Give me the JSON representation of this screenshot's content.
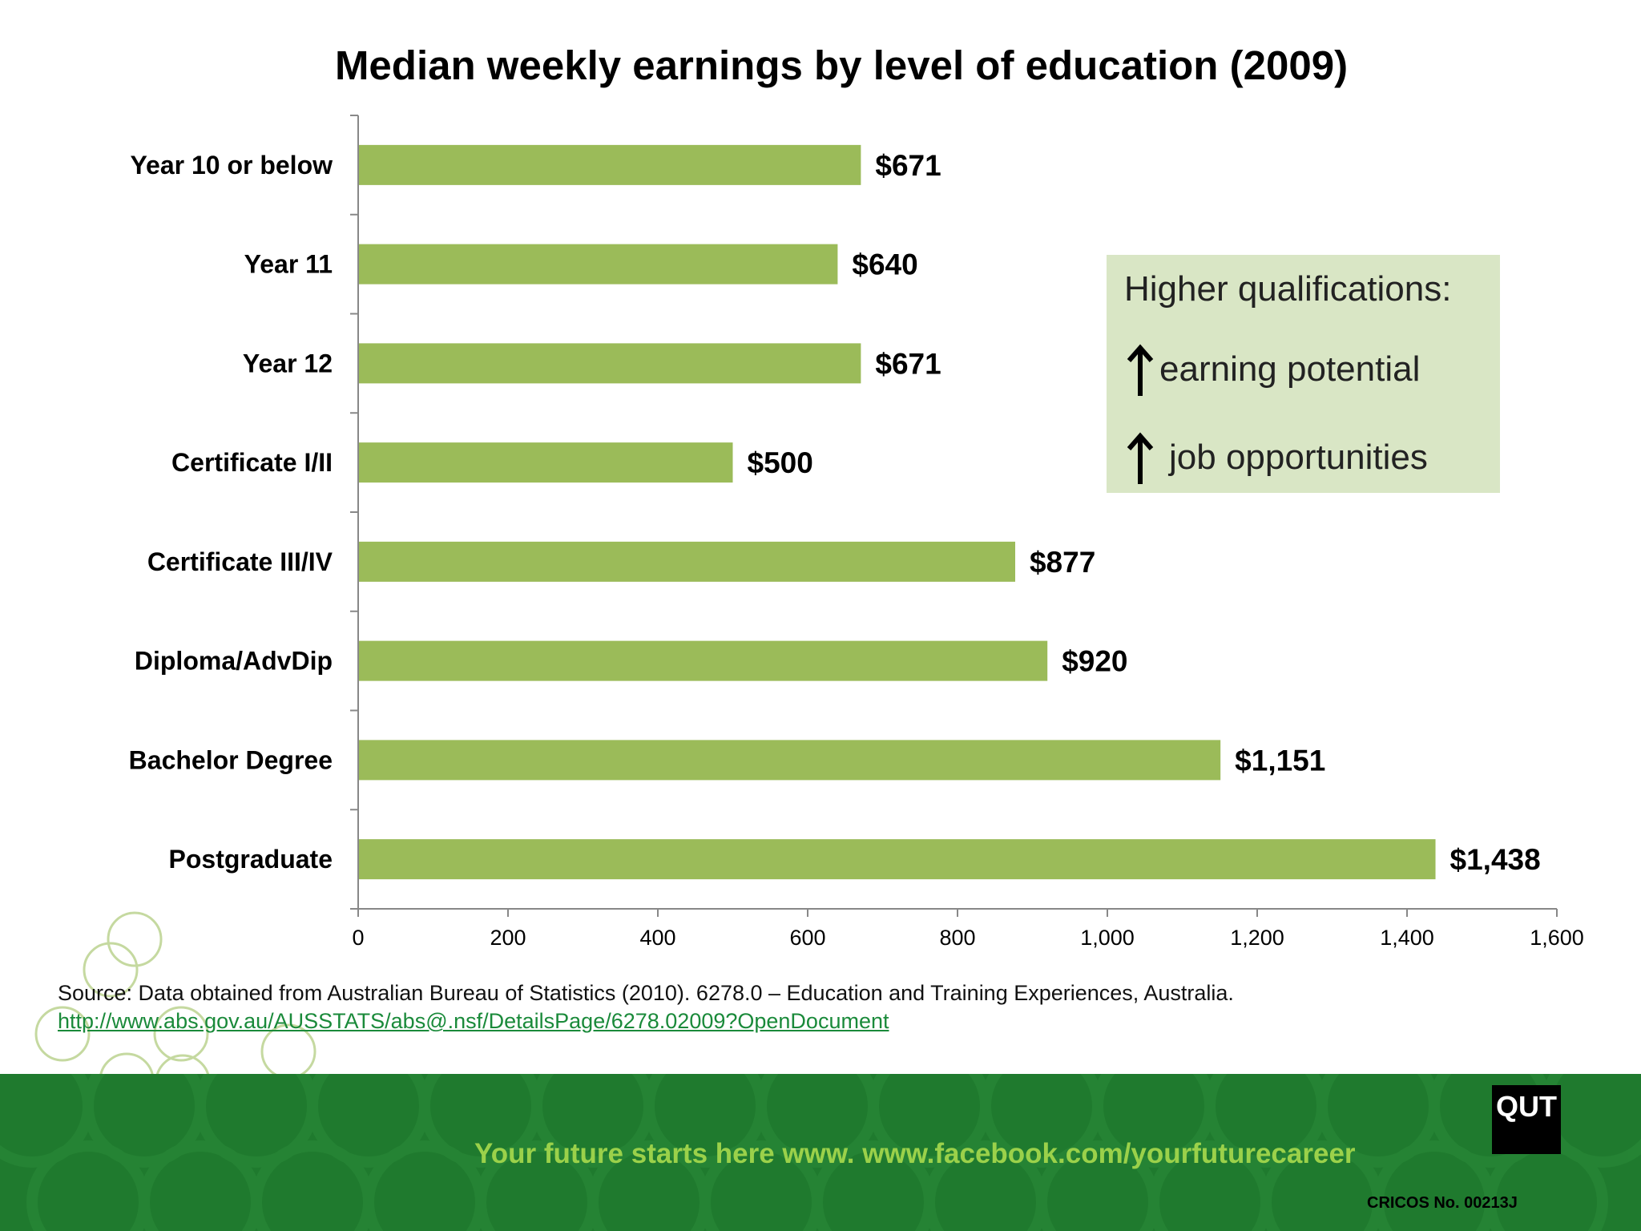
{
  "title": "Median weekly earnings by level of education (2009)",
  "chart_data": {
    "type": "bar",
    "orientation": "horizontal",
    "title": "Median weekly earnings by level of education (2009)",
    "categories": [
      "Year 10 or below",
      "Year 11",
      "Year 12",
      "Certificate I/II",
      "Certificate III/IV",
      "Diploma/AdvDip",
      "Bachelor Degree",
      "Postgraduate"
    ],
    "values": [
      671,
      640,
      671,
      500,
      877,
      920,
      1151,
      1438
    ],
    "value_labels": [
      "$671",
      "$640",
      "$671",
      "$500",
      "$877",
      "$920",
      "$1,151",
      "$1,438"
    ],
    "xlim": [
      0,
      1600
    ],
    "xticks": [
      0,
      200,
      400,
      600,
      800,
      1000,
      1200,
      1400,
      1600
    ],
    "xtick_labels": [
      "0",
      "200",
      "400",
      "600",
      "800",
      "1,000",
      "1,200",
      "1,400",
      "1,600"
    ],
    "xlabel": "",
    "ylabel": "",
    "grid": false,
    "bar_color": "#9bbb59"
  },
  "callout": {
    "heading": "Higher qualifications:",
    "line1": "earning potential",
    "line2": "job opportunities"
  },
  "source": {
    "text": "Source: Data obtained from Australian Bureau of Statistics (2010). 6278.0 – Education and Training Experiences, Australia.",
    "link": "http://www.abs.gov.au/AUSSTATS/abs@.nsf/DetailsPage/6278.02009?OpenDocument"
  },
  "footer": {
    "tagline": "Your future starts here www. www.facebook.com/yourfuturecareer",
    "logo": "QUT",
    "cricos": "CRICOS No. 00213J"
  },
  "colors": {
    "footer_green": "#1f7a2e",
    "tagline_green": "#9bd14a",
    "callout_bg": "#d9e6c5"
  }
}
